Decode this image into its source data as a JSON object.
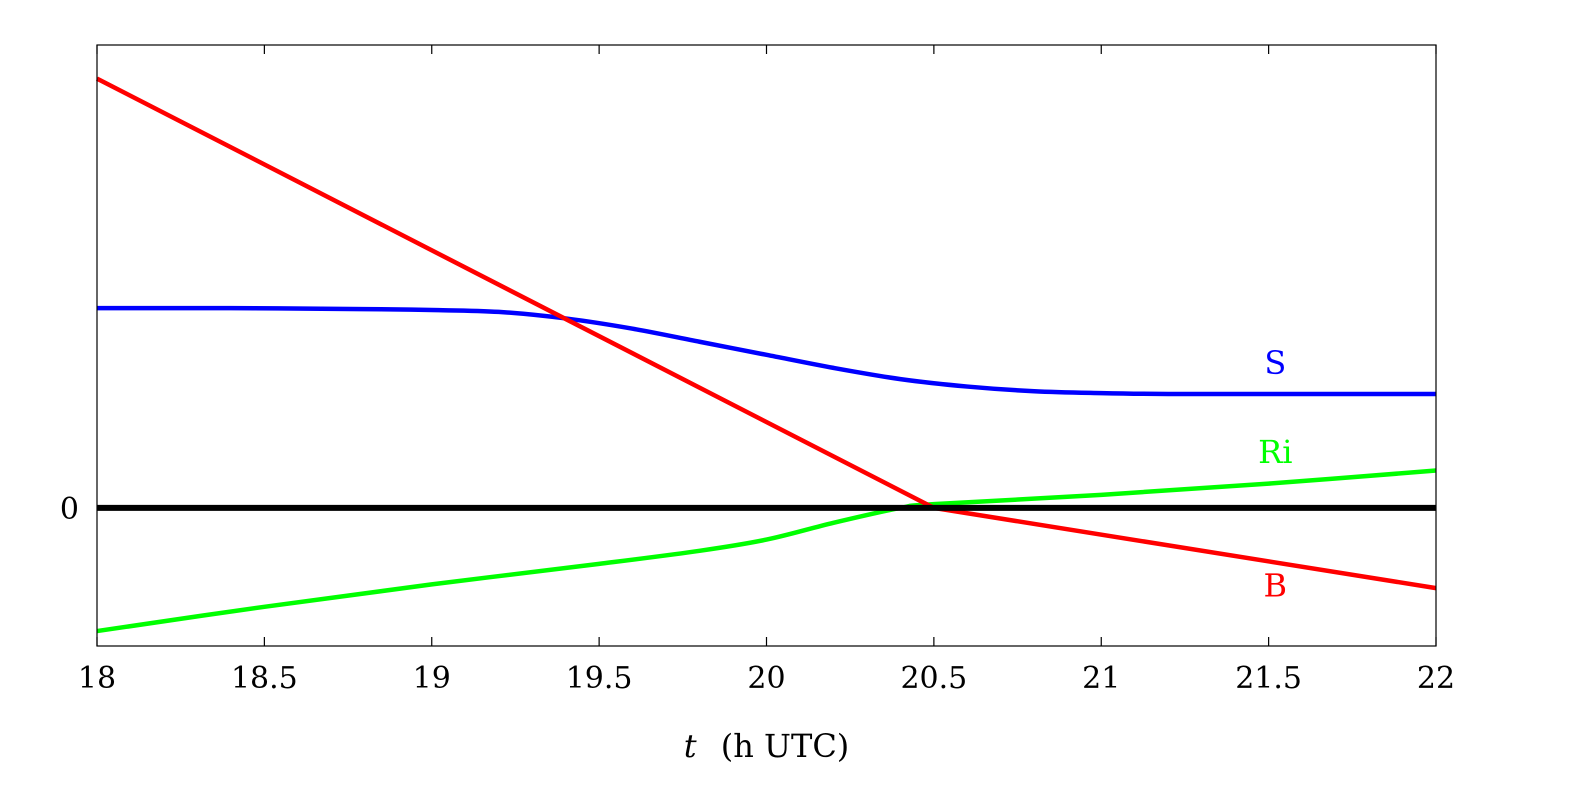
{
  "chart_data": {
    "type": "line",
    "xlabel_var": "t",
    "xlabel_unit": "(h UTC)",
    "xlim": [
      18,
      22
    ],
    "ylim": [
      -0.74,
      2.48
    ],
    "x_ticks": [
      "18",
      "18.5",
      "19",
      "19.5",
      "20",
      "20.5",
      "21",
      "21.5",
      "22"
    ],
    "y_ticks": [
      "0"
    ],
    "grid": false,
    "legend": "none",
    "series": [
      {
        "name": "S",
        "color": "#0000ff",
        "x": [
          18.0,
          18.4,
          18.8,
          19.0,
          19.2,
          19.4,
          19.6,
          19.8,
          20.0,
          20.2,
          20.4,
          20.6,
          20.8,
          21.0,
          21.2,
          21.5,
          22.0
        ],
        "y": [
          1.07,
          1.07,
          1.065,
          1.06,
          1.05,
          1.015,
          0.96,
          0.89,
          0.82,
          0.75,
          0.69,
          0.65,
          0.625,
          0.615,
          0.61,
          0.61,
          0.61
        ]
      },
      {
        "name": "Ri",
        "color": "#00ff00",
        "x": [
          18.0,
          18.5,
          19.0,
          19.5,
          19.8,
          20.0,
          20.2,
          20.4,
          20.5,
          21.0,
          21.5,
          22.0
        ],
        "y": [
          -0.66,
          -0.53,
          -0.41,
          -0.3,
          -0.23,
          -0.17,
          -0.08,
          0.0,
          0.02,
          0.07,
          0.13,
          0.2
        ]
      },
      {
        "name": "B",
        "color": "#ff0000",
        "x": [
          18.0,
          20.5,
          22.0
        ],
        "y": [
          2.3,
          0.0,
          -0.43
        ]
      }
    ],
    "reference_line": {
      "y": 0,
      "color": "#000000"
    }
  }
}
